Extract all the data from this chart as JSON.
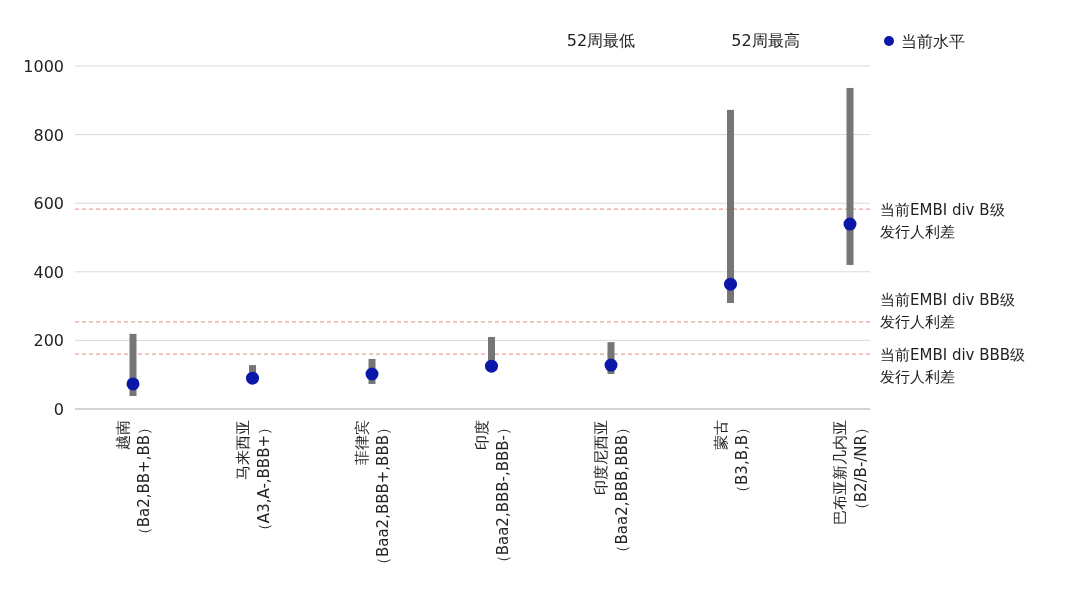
{
  "chart_data": {
    "type": "bar",
    "categories": [
      "越南（Ba2,BB+,BB）",
      "马来西亚（A3,A-,BBB+）",
      "菲律宾（Baa2,BBB+,BBB）",
      "印度（Baa2,BBB-,BBB-）",
      "印度尼西亚（Baa2,BBB,BBB）",
      "蒙古（B3,B,B）",
      "巴布亚新几内亚（B2/B-/NR）"
    ],
    "series": [
      {
        "color": "#767676",
        "base": [
          38,
          85,
          73,
          120,
          102,
          309,
          420
        ],
        "values": [
          181,
          43,
          73,
          90,
          93,
          563,
          516
        ]
      },
      {
        "type": "scatter",
        "name": "当前水平",
        "color": "#0a17a8",
        "marker": "circle",
        "values": [
          73,
          90,
          102,
          125,
          128,
          364,
          539
        ]
      }
    ],
    "ylim": [
      0,
      1000
    ],
    "yticks": [
      0,
      200,
      400,
      600,
      800,
      1000
    ],
    "grid": "y",
    "legend": "top right",
    "ref_lines": [
      {
        "axis": "y",
        "value": 583,
        "label": "当前EMBI div B级发行人利差",
        "color": "#e8a09a",
        "line_style": "dashed"
      },
      {
        "axis": "y",
        "value": 254,
        "label": "当前EMBI div BB级发行人利差",
        "color": "#e8a09a",
        "line_style": "dashed"
      },
      {
        "axis": "y",
        "value": 160,
        "label": "当前EMBI div BBB级发行人利差",
        "color": "#e8a09a",
        "line_style": "dashed"
      }
    ],
    "annotations": [
      "52周最低",
      "52周最高"
    ]
  }
}
